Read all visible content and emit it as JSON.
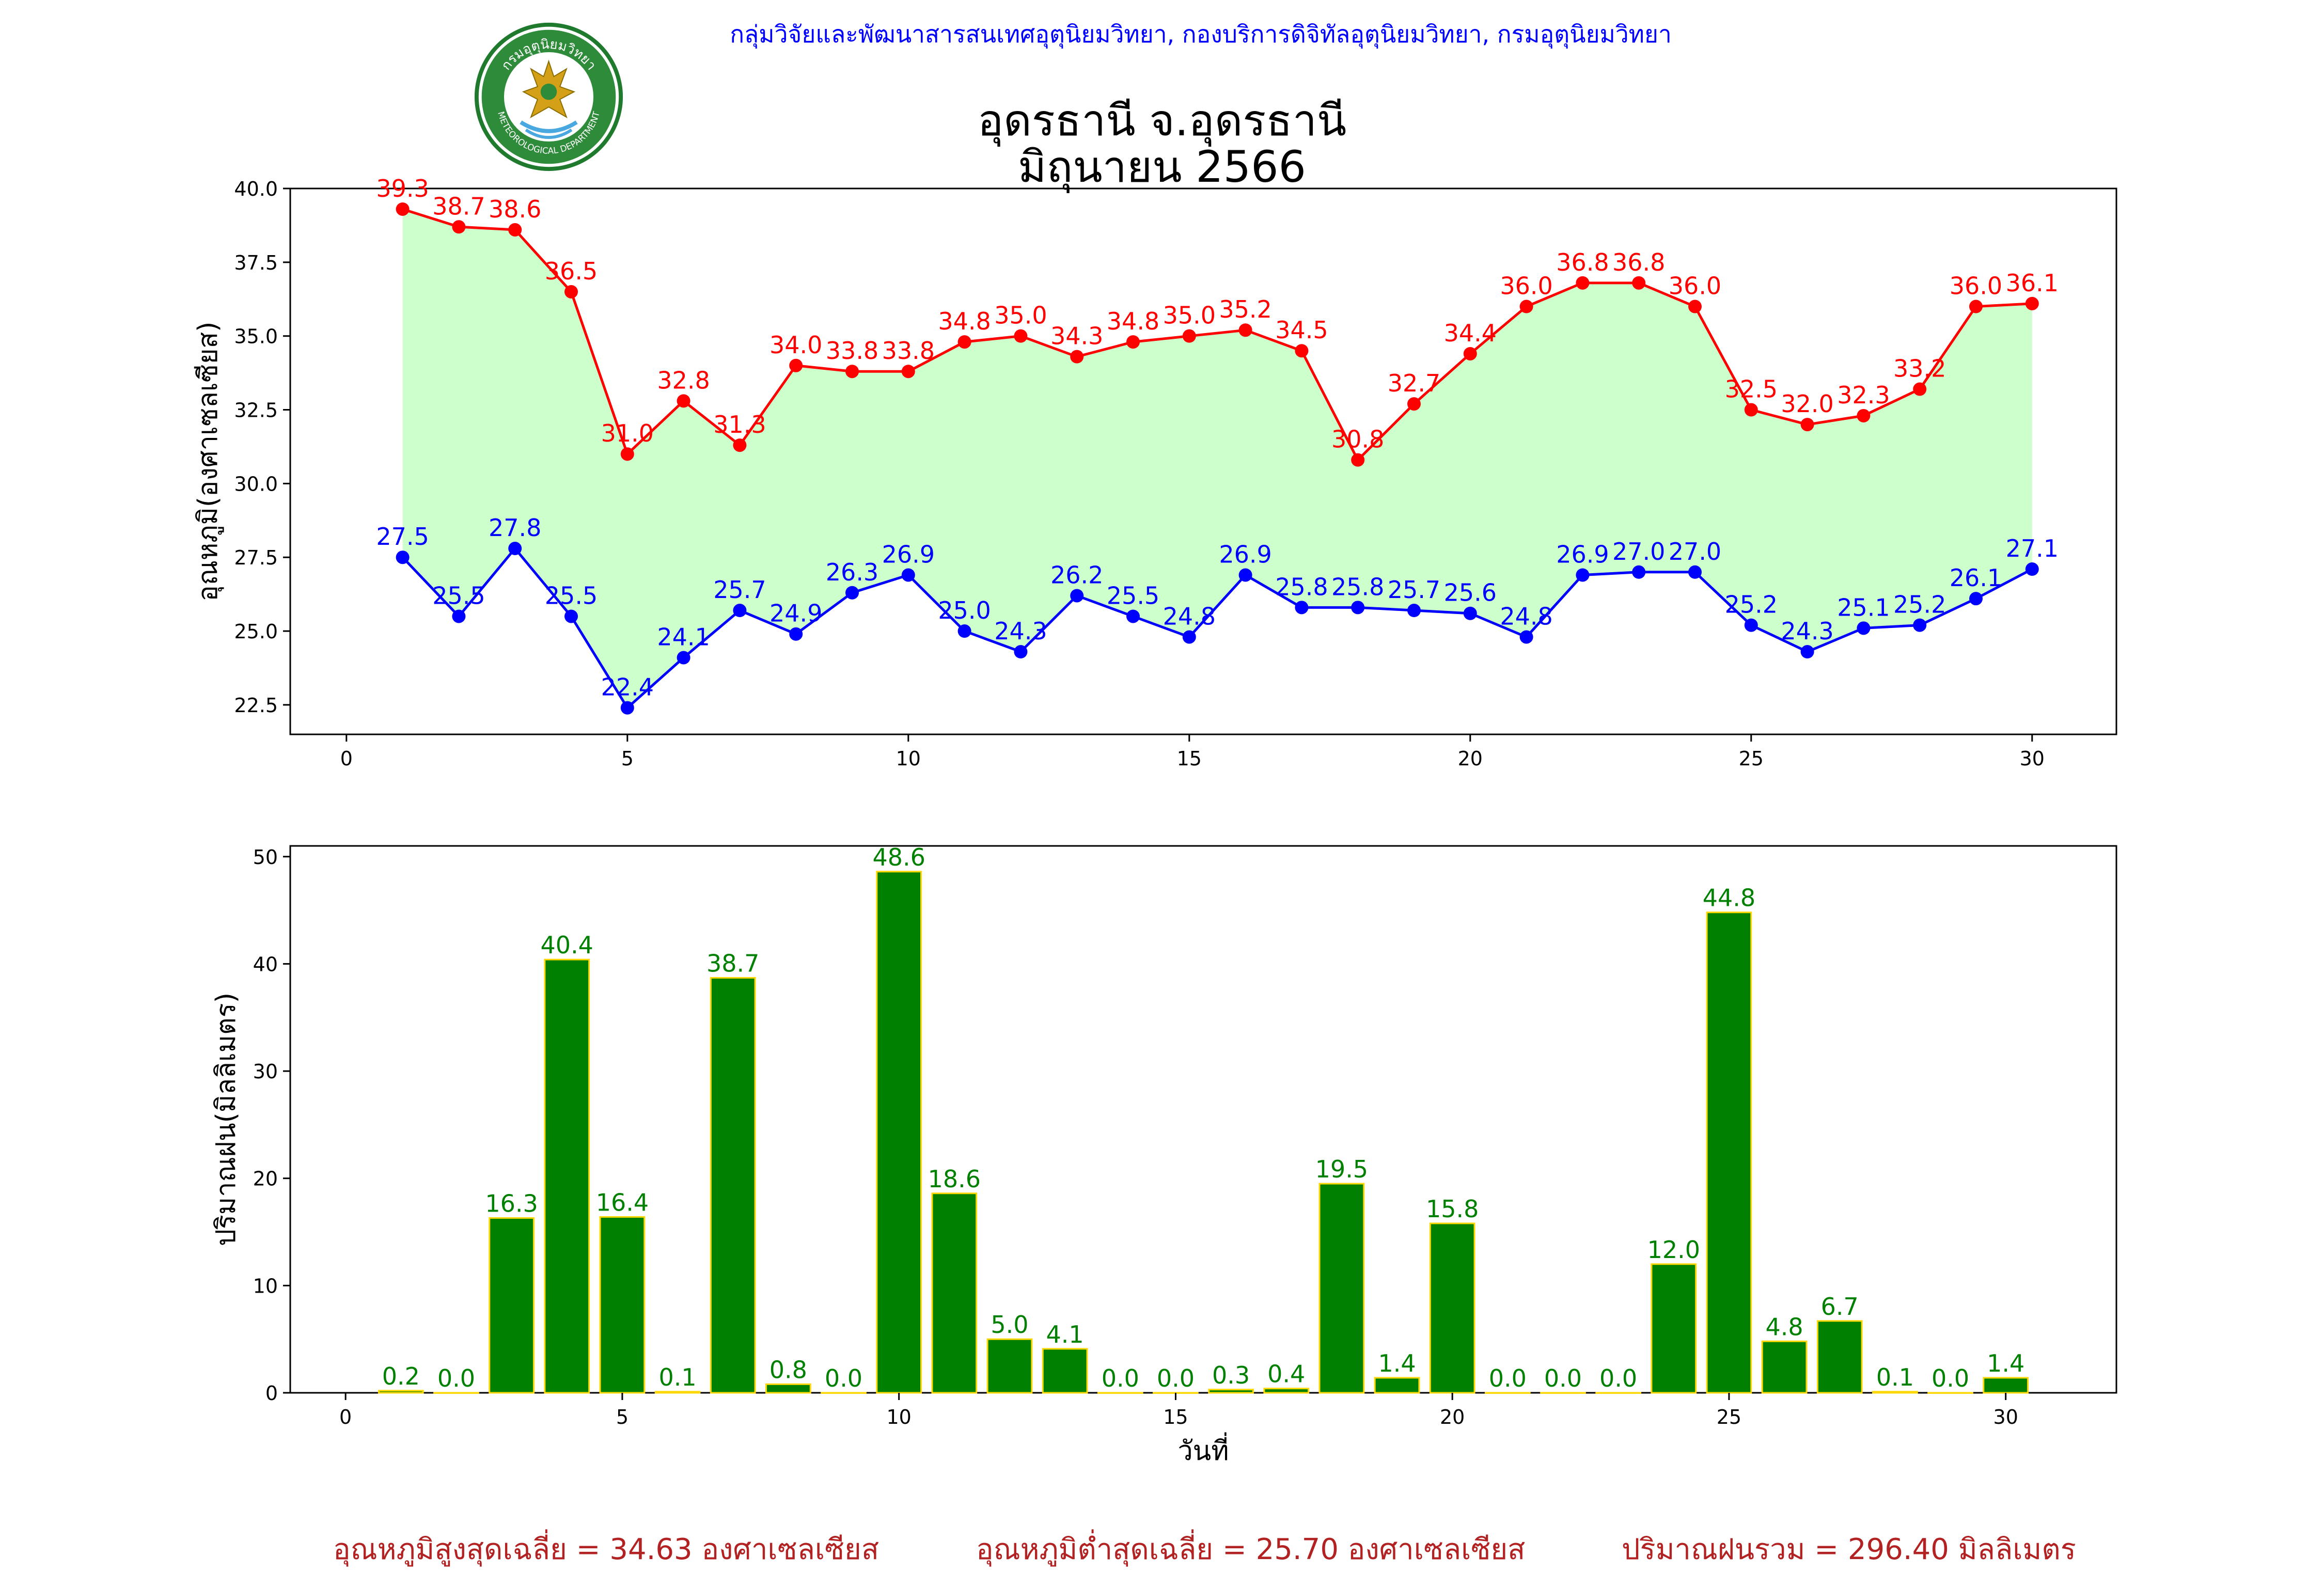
{
  "header": {
    "agency_line": "กลุ่มวิจัยและพัฒนาสารสนเทศอุตุนิยมวิทยา, กองบริการดิจิทัลอุตุนิยมวิทยา, กรมอุตุนิยมวิทยา",
    "logo_text_top": "กรมอุตุนิยมวิทยา",
    "logo_text_bottom": "METEOROLOGICAL DEPARTMENT"
  },
  "title_line1": "อุดรธานี จ.อุดรธานี",
  "title_line2": "มิถุนายน 2566",
  "colors": {
    "max_temp": "#ff0000",
    "min_temp": "#0000ff",
    "fill_between": "#ccffcc",
    "rain_bar": "#008000",
    "rain_edge": "#ffd700",
    "rain_label": "#008000",
    "summary": "#b22222"
  },
  "chart_data": [
    {
      "type": "line",
      "ylabel": "อุณหภูมิ(องศาเซลเซียส)",
      "xlim": [
        -1,
        31.5
      ],
      "ylim": [
        21.5,
        40.0
      ],
      "x_ticks": [
        0,
        5,
        10,
        15,
        20,
        25,
        30
      ],
      "y_ticks": [
        "22.5",
        "25.0",
        "27.5",
        "30.0",
        "32.5",
        "35.0",
        "37.5",
        "40.0"
      ],
      "x": [
        1,
        2,
        3,
        4,
        5,
        6,
        7,
        8,
        9,
        10,
        11,
        12,
        13,
        14,
        15,
        16,
        17,
        18,
        19,
        20,
        21,
        22,
        23,
        24,
        25,
        26,
        27,
        28,
        29,
        30
      ],
      "series": [
        {
          "key": "max",
          "values": [
            39.3,
            38.7,
            38.6,
            36.5,
            31.0,
            32.8,
            31.3,
            34.0,
            33.8,
            33.8,
            34.8,
            35.0,
            34.3,
            34.8,
            35.0,
            35.2,
            34.5,
            30.8,
            32.7,
            34.4,
            36.0,
            36.8,
            36.8,
            36.0,
            32.5,
            32.0,
            32.3,
            33.2,
            36.0,
            36.1
          ]
        },
        {
          "key": "min",
          "values": [
            27.5,
            25.5,
            27.8,
            25.5,
            22.4,
            24.1,
            25.7,
            24.9,
            26.3,
            26.9,
            25.0,
            24.3,
            26.2,
            25.5,
            24.8,
            26.9,
            25.8,
            25.8,
            25.7,
            25.6,
            24.8,
            26.9,
            27.0,
            27.0,
            25.2,
            24.3,
            25.1,
            25.2,
            26.1,
            27.1
          ]
        }
      ]
    },
    {
      "type": "bar",
      "xlabel": "วันที่",
      "ylabel": "ปริมาณฝน(มิลลิเมตร)",
      "xlim": [
        -1,
        32
      ],
      "ylim": [
        0,
        51
      ],
      "x_ticks": [
        0,
        5,
        10,
        15,
        20,
        25,
        30
      ],
      "y_ticks": [
        0,
        10,
        20,
        30,
        40,
        50
      ],
      "x": [
        1,
        2,
        3,
        4,
        5,
        6,
        7,
        8,
        9,
        10,
        11,
        12,
        13,
        14,
        15,
        16,
        17,
        18,
        19,
        20,
        21,
        22,
        23,
        24,
        25,
        26,
        27,
        28,
        29,
        30
      ],
      "values": [
        0.2,
        0.0,
        16.3,
        40.4,
        16.4,
        0.1,
        38.7,
        0.8,
        0.0,
        48.6,
        18.6,
        5.0,
        4.1,
        0.0,
        0.0,
        0.3,
        0.4,
        19.5,
        1.4,
        15.8,
        0.0,
        0.0,
        0.0,
        12.0,
        44.8,
        4.8,
        6.7,
        0.1,
        0.0,
        1.4
      ]
    }
  ],
  "summary": {
    "max_avg": "อุณหภูมิสูงสุดเฉลี่ย = 34.63 องศาเซลเซียส",
    "min_avg": "อุณหภูมิต่ำสุดเฉลี่ย = 25.70 องศาเซลเซียส",
    "rain_total": "ปริมาณฝนรวม = 296.40 มิลลิเมตร"
  }
}
